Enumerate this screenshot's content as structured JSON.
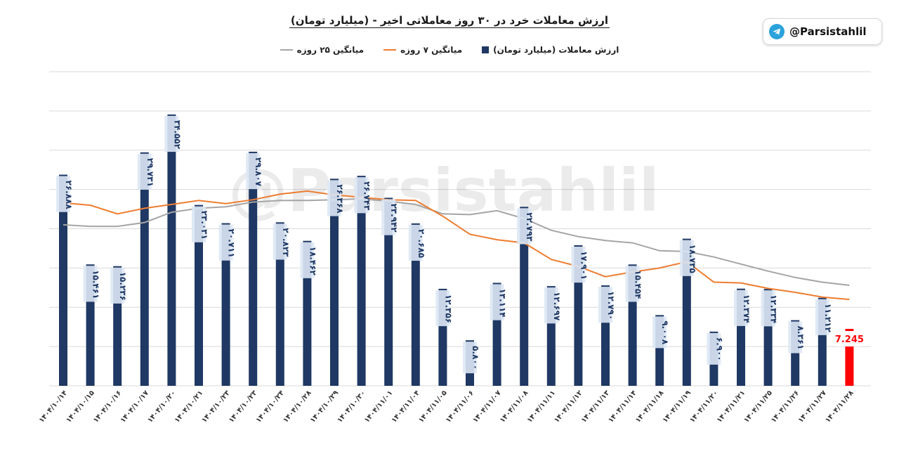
{
  "badge": {
    "handle": "@Parsistahlil"
  },
  "watermark": "@Parsistahlil",
  "colors": {
    "bar": "#1f3864",
    "last_bar": "#ff0000",
    "ma7": "#ed7d31",
    "ma25": "#a5a5a5",
    "label_bg": "#dde8f5",
    "grid": "#d9d9d9"
  },
  "chart_data": {
    "type": "bar",
    "title": "ارزش معاملات خرد در ۳۰ روز معاملاتی اخیر - (میلیارد تومان)",
    "ylim": [
      0,
      40
    ],
    "grid": true,
    "legend_position": "top",
    "categories": [
      "۱۴۰۴/۱۰/۱۴",
      "۱۴۰۴/۱۰/۱۵",
      "۱۴۰۴/۱۰/۱۶",
      "۱۴۰۴/۱۰/۱۷",
      "۱۴۰۴/۱۰/۲۰",
      "۱۴۰۴/۱۰/۲۱",
      "۱۴۰۴/۱۰/۲۳",
      "۱۴۰۴/۱۰/۲۳",
      "۱۴۰۴/۱۰/۲۴",
      "۱۴۰۴/۱۰/۲۸",
      "۱۴۰۴/۱۰/۲۹",
      "۱۴۰۴/۱۰/۳۰",
      "۱۴۰۴/۱۱/۰۱",
      "۱۴۰۴/۱۱/۰۴",
      "۱۴۰۴/۱۱/۰۵",
      "۱۴۰۴/۱۱/۰۶",
      "۱۴۰۴/۱۱/۰۷",
      "۱۴۰۴/۱۱/۰۸",
      "۱۴۰۴/۱۱/۱۱",
      "۱۴۰۴/۱۱/۱۲",
      "۱۴۰۴/۱۱/۱۳",
      "۱۴۰۴/۱۱/۱۴",
      "۱۴۰۴/۱۱/۱۸",
      "۱۴۰۴/۱۱/۱۹",
      "۱۴۰۴/۱۱/۲۰",
      "۱۴۰۴/۱۱/۲۱",
      "۱۴۰۴/۱۱/۲۵",
      "۱۴۰۴/۱۱/۲۶",
      "۱۴۰۴/۱۱/۲۷",
      "۱۴۰۴/۱۱/۲۸"
    ],
    "series": [
      {
        "name": "ارزش معاملات (میلیارد تومان)",
        "kind": "bar",
        "values": [
          26.888,
          15.461,
          15.236,
          29.731,
          34.552,
          23.031,
          20.711,
          29.807,
          20.823,
          18.462,
          26.368,
          26.743,
          23.942,
          20.685,
          12.356,
          5.8,
          13.114,
          22.793,
          12.697,
          17.901,
          12.79,
          15.454,
          9.008,
          18.735,
          6.9,
          12.374,
          12.334,
          8.361,
          11.212,
          7.245
        ],
        "labels": [
          "۲۶.۸۸۸",
          "۱۵.۴۶۱",
          "۱۵.۲۳۶",
          "۲۹.۷۳۱",
          "۳۴.۵۵۲",
          "۲۳.۰۳۱",
          "۲۰.۷۱۱",
          "۲۹.۸۰۷",
          "۲۰.۸۲۳",
          "۱۸.۴۶۲",
          "۲۶.۳۶۸",
          "۲۶.۷۴۳",
          "۲۳.۹۴۲",
          "۲۰.۶۸۵",
          "۱۲.۳۵۶",
          "۵.۸۰۰",
          "۱۳.۱۱۴",
          "۲۲.۷۹۳",
          "۱۲.۶۹۷",
          "۱۷.۹۰۱",
          "۱۲.۷۹۰",
          "۱۵.۴۵۴",
          "۹.۰۰۸",
          "۱۸.۷۳۵",
          "۶.۹۰۰",
          "۱۲.۳۷۴",
          "۱۲.۳۳۴",
          "۸.۳۶۱",
          "۱۱.۲۱۲",
          "7.245"
        ]
      },
      {
        "name": "میانگین ۷ روزه",
        "kind": "line",
        "values": [
          23.3,
          23.0,
          21.9,
          22.6,
          23.1,
          23.6,
          23.2,
          23.7,
          24.4,
          24.8,
          24.3,
          null,
          23.7,
          23.6,
          21.6,
          19.3,
          18.6,
          18.2,
          16.1,
          15.2,
          13.9,
          14.5,
          15.0,
          15.8,
          13.2,
          13.1,
          12.4,
          11.9,
          11.3,
          11.0
        ]
      },
      {
        "name": "میانگین ۲۵ روزه",
        "kind": "line",
        "values": [
          20.5,
          20.3,
          20.3,
          20.8,
          22.1,
          22.6,
          22.8,
          23.4,
          23.6,
          23.6,
          23.7,
          23.8,
          23.5,
          23.1,
          21.9,
          21.8,
          22.3,
          21.3,
          19.8,
          19.0,
          18.5,
          18.2,
          17.2,
          17.1,
          16.4,
          15.5,
          14.6,
          13.8,
          13.2,
          12.8
        ]
      }
    ]
  }
}
